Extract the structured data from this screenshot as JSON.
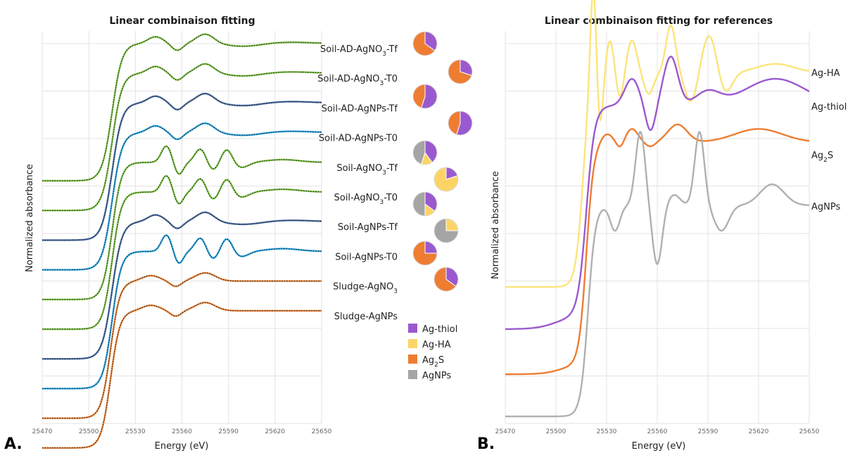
{
  "figure": {
    "panel_a_letter": "A.",
    "panel_b_letter": "B."
  },
  "chart_data": [
    {
      "type": "line",
      "title": "Linear combinaison  fitting",
      "xlabel": "Energy (eV)",
      "ylabel": "Normalized absorbance",
      "xlim": [
        25470,
        25650
      ],
      "x_ticks": [
        "25470",
        "25500",
        "25530",
        "25560",
        "25590",
        "25620",
        "25650"
      ],
      "grid": true,
      "series": [
        {
          "name": "Soil-AD-AgNO3-Tf",
          "label_main": "Soil-AD-AgNO",
          "label_sub": "3",
          "label_tail": "-Tf",
          "fit_color": "#7ac043",
          "type": "soil",
          "composition": {
            "Ag-thiol": 0.35,
            "Ag-HA": 0,
            "Ag2S": 0.65,
            "AgNPs": 0
          }
        },
        {
          "name": "Soil-AD-AgNO3-T0",
          "label_main": "Soil-AD-AgNO",
          "label_sub": "3",
          "label_tail": "-T0",
          "fit_color": "#7ac043",
          "type": "soil",
          "composition": {
            "Ag-thiol": 0.3,
            "Ag-HA": 0,
            "Ag2S": 0.7,
            "AgNPs": 0
          }
        },
        {
          "name": "Soil-AD-AgNPs-Tf",
          "label_main": "Soil-AD-AgNPs-Tf",
          "label_sub": "",
          "label_tail": "",
          "fit_color": "#4a6fa5",
          "type": "soil",
          "composition": {
            "Ag-thiol": 0.55,
            "Ag-HA": 0,
            "Ag2S": 0.45,
            "AgNPs": 0
          }
        },
        {
          "name": "Soil-AD-AgNPs-T0",
          "label_main": "Soil-AD-AgNPs-T0",
          "label_sub": "",
          "label_tail": "",
          "fit_color": "#29a3e0",
          "type": "soil",
          "composition": {
            "Ag-thiol": 0.55,
            "Ag-HA": 0,
            "Ag2S": 0.45,
            "AgNPs": 0
          }
        },
        {
          "name": "Soil-AgNO3-Tf",
          "label_main": "Soil-AgNO",
          "label_sub": "3",
          "label_tail": "-Tf",
          "fit_color": "#7ac043",
          "type": "soil",
          "composition": {
            "Ag-thiol": 0.4,
            "Ag-HA": 0.15,
            "Ag2S": 0,
            "AgNPs": 0.45
          }
        },
        {
          "name": "Soil-AgNO3-T0",
          "label_main": "Soil-AgNO",
          "label_sub": "3",
          "label_tail": "-T0",
          "fit_color": "#7ac043",
          "type": "soil",
          "composition": {
            "Ag-thiol": 0.2,
            "Ag-HA": 0.8,
            "Ag2S": 0,
            "AgNPs": 0
          }
        },
        {
          "name": "Soil-AgNPs-Tf",
          "label_main": "Soil-AgNPs-Tf",
          "label_sub": "",
          "label_tail": "",
          "fit_color": "#4a6fa5",
          "type": "soil",
          "composition": {
            "Ag-thiol": 0.35,
            "Ag-HA": 0.15,
            "Ag2S": 0,
            "AgNPs": 0.5
          }
        },
        {
          "name": "Soil-AgNPs-T0",
          "label_main": "Soil-AgNPs-T0",
          "label_sub": "",
          "label_tail": "",
          "fit_color": "#29a3e0",
          "type": "soil",
          "composition": {
            "Ag-thiol": 0,
            "Ag-HA": 0.25,
            "Ag2S": 0,
            "AgNPs": 0.75
          }
        },
        {
          "name": "Sludge-AgNO3",
          "label_main": "Sludge-AgNO",
          "label_sub": "3",
          "label_tail": "",
          "fit_color": "#e8843a",
          "type": "sludge",
          "composition": {
            "Ag-thiol": 0.25,
            "Ag-HA": 0,
            "Ag2S": 0.75,
            "AgNPs": 0
          }
        },
        {
          "name": "Sludge-AgNPs",
          "label_main": "Sludge-AgNPs",
          "label_sub": "",
          "label_tail": "",
          "fit_color": "#e8843a",
          "type": "sludge",
          "composition": {
            "Ag-thiol": 0.35,
            "Ag-HA": 0,
            "Ag2S": 0.65,
            "AgNPs": 0
          }
        }
      ],
      "legend": {
        "placement": "bottom-right",
        "items": [
          {
            "key": "Ag-thiol",
            "main": "Ag-thiol",
            "sub": "",
            "tail": "",
            "color": "#9b59d0"
          },
          {
            "key": "Ag-HA",
            "main": "Ag-HA",
            "sub": "",
            "tail": "",
            "color": "#fcd466"
          },
          {
            "key": "Ag2S",
            "main": "Ag",
            "sub": "2",
            "tail": "S",
            "color": "#ee7d32"
          },
          {
            "key": "AgNPs",
            "main": "AgNPs",
            "sub": "",
            "tail": "",
            "color": "#a5a5a5"
          }
        ]
      }
    },
    {
      "type": "line",
      "title": "Linear combinaison  fitting for references",
      "xlabel": "Energy (eV)",
      "ylabel": "Normalized absorbance",
      "xlim": [
        25470,
        25650
      ],
      "x_ticks": [
        "25470",
        "25500",
        "25530",
        "25560",
        "25590",
        "25620",
        "25650"
      ],
      "grid": true,
      "series": [
        {
          "name": "Ag-HA",
          "main": "Ag-HA",
          "sub": "",
          "tail": "",
          "color": "#fce47a",
          "type": "ha"
        },
        {
          "name": "Ag-thiol",
          "main": "Ag-thiol",
          "sub": "",
          "tail": "",
          "color": "#9b59d0",
          "type": "thiol"
        },
        {
          "name": "Ag2S",
          "main": "Ag",
          "sub": "2",
          "tail": "S",
          "color": "#ee7d32",
          "type": "ag2s"
        },
        {
          "name": "AgNPs",
          "main": "AgNPs",
          "sub": "",
          "tail": "",
          "color": "#b0b0b0",
          "type": "nps"
        }
      ]
    }
  ]
}
